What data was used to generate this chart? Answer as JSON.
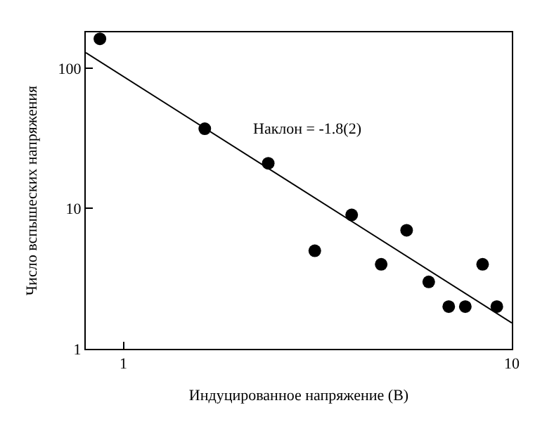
{
  "chart_data": {
    "type": "scatter",
    "xlabel": "Индуцированное напряжение (В)",
    "ylabel": "Число вспышеских напряжения",
    "log": "xy",
    "grid": false,
    "xlim": [
      0.8,
      10
    ],
    "xticks": [
      1,
      10
    ],
    "ylim": [
      1,
      180
    ],
    "yticks": [
      1,
      10,
      100
    ],
    "annotations": [
      "Наклон = -1.8(2)"
    ],
    "series": [
      {
        "color": "#000000",
        "marker": "circle",
        "x": [
          0.87,
          1.62,
          2.36,
          3.11,
          3.87,
          4.61,
          5.36,
          6.11,
          6.88,
          7.59,
          8.41,
          9.15
        ],
        "values": [
          162,
          37,
          21,
          5,
          9,
          4,
          7,
          3,
          2,
          2,
          4,
          2
        ]
      },
      {
        "type": "line",
        "color": "#000000",
        "marker": "none",
        "line_style": "solid",
        "x": [
          0.8,
          10
        ],
        "values": [
          129,
          1.53
        ]
      }
    ]
  }
}
